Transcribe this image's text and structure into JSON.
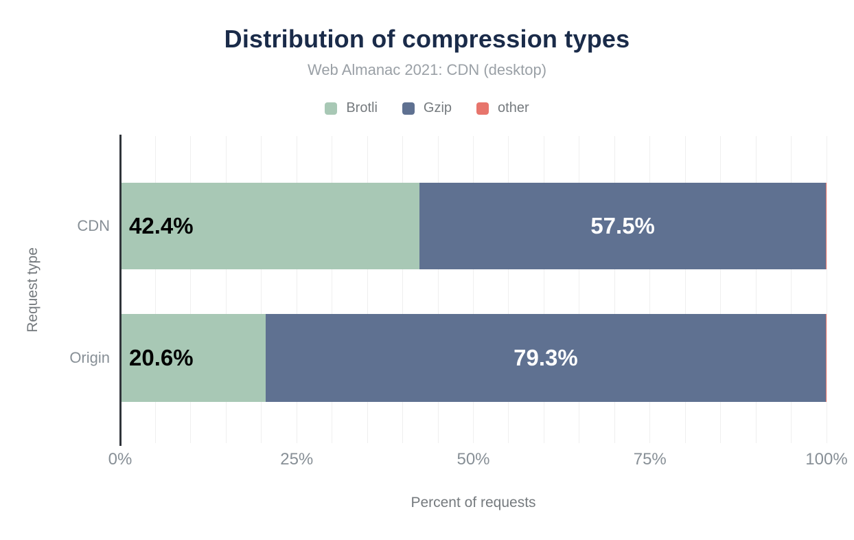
{
  "header": {
    "title": "Distribution of compression types",
    "subtitle": "Web Almanac 2021: CDN (desktop)"
  },
  "chart_data": {
    "type": "bar",
    "orientation": "horizontal",
    "stacked": true,
    "title": "Distribution of compression types",
    "subtitle": "Web Almanac 2021: CDN (desktop)",
    "xlabel": "Percent of requests",
    "ylabel": "Request type",
    "categories": [
      "CDN",
      "Origin"
    ],
    "series": [
      {
        "name": "Brotli",
        "color": "#a8c8b5",
        "values": [
          42.4,
          20.6
        ],
        "labels": [
          "42.4%",
          "20.6%"
        ],
        "label_color": "#000000",
        "label_align": "left"
      },
      {
        "name": "Gzip",
        "color": "#5f7191",
        "values": [
          57.5,
          79.3
        ],
        "labels": [
          "57.5%",
          "79.3%"
        ],
        "label_color": "#ffffff",
        "label_align": "center"
      },
      {
        "name": "other",
        "color": "#e7756c",
        "values": [
          0.1,
          0.1
        ],
        "labels": [
          "",
          ""
        ],
        "label_color": "#000000",
        "label_align": "center"
      }
    ],
    "xlim": [
      0,
      100
    ],
    "grid_step": 5,
    "xticks": [
      {
        "value": 0,
        "label": "0%"
      },
      {
        "value": 25,
        "label": "25%"
      },
      {
        "value": 50,
        "label": "50%"
      },
      {
        "value": 75,
        "label": "75%"
      },
      {
        "value": 100,
        "label": "100%"
      }
    ],
    "legend_position": "top",
    "grid": "vertical-minor"
  },
  "colors": {
    "title": "#1a2b49",
    "subtitle": "#9aa0a6",
    "muted_text": "#757a7e",
    "tick_text": "#878f96",
    "grid": "#efefef",
    "axis_line": "#30343a",
    "background": "#ffffff"
  }
}
